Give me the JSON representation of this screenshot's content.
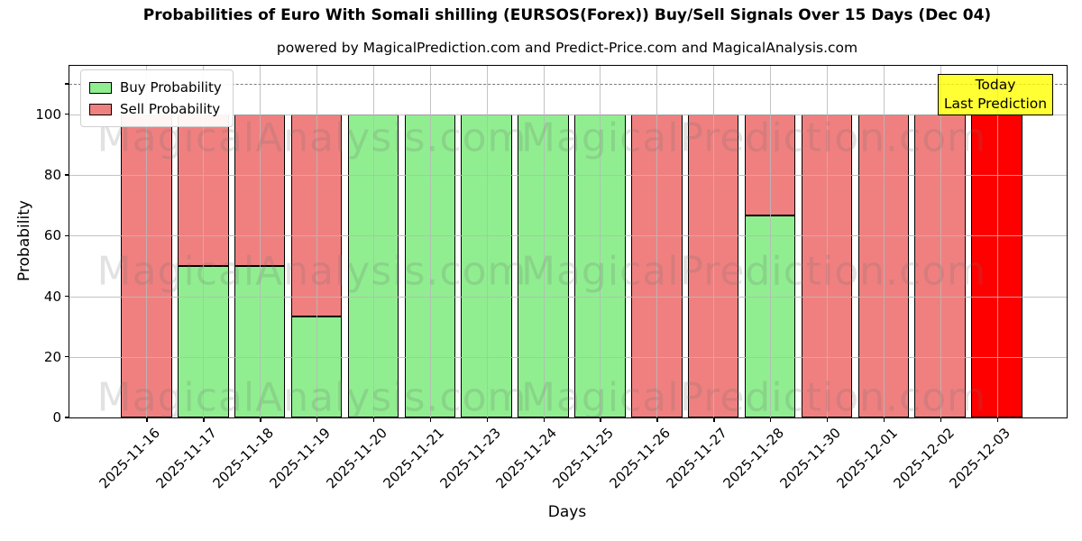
{
  "header": {
    "title": "Probabilities of Euro With Somali shilling (EURSOS(Forex)) Buy/Sell Signals Over 15 Days (Dec 04)",
    "subtitle": "powered by MagicalPrediction.com and Predict-Price.com and MagicalAnalysis.com"
  },
  "legend": {
    "items": [
      {
        "label": "Buy Probability",
        "color": "#90ee90"
      },
      {
        "label": "Sell Probability",
        "color": "#f08080"
      }
    ]
  },
  "annotation": {
    "line1": "Today",
    "line2": "Last Prediction",
    "bg_color": "rgba(255,255,0,0.8)"
  },
  "watermarks": {
    "left": "MagicalAnalysis.com",
    "right": "MagicalPrediction.com"
  },
  "chart_data": {
    "type": "bar",
    "stacked": true,
    "title": "Probabilities of Euro With Somali shilling (EURSOS(Forex)) Buy/Sell Signals Over 15 Days (Dec 04)",
    "xlabel": "Days",
    "ylabel": "Probability",
    "categories": [
      "2025-11-16",
      "2025-11-17",
      "2025-11-18",
      "2025-11-19",
      "2025-11-20",
      "2025-11-21",
      "2025-11-23",
      "2025-11-24",
      "2025-11-25",
      "2025-11-26",
      "2025-11-27",
      "2025-11-28",
      "2025-11-30",
      "2025-12-01",
      "2025-12-02",
      "2025-12-03"
    ],
    "series": [
      {
        "name": "Buy Probability",
        "color": "#90ee90",
        "values": [
          0,
          50,
          50,
          33.33,
          100,
          100,
          100,
          100,
          100,
          0,
          0,
          66.67,
          0,
          0,
          0,
          0
        ]
      },
      {
        "name": "Sell Probability",
        "color": "#f08080",
        "values": [
          100,
          50,
          50,
          66.67,
          0,
          0,
          0,
          0,
          0,
          100,
          100,
          33.33,
          100,
          100,
          100,
          100
        ]
      }
    ],
    "today_index": 15,
    "today_color": "#ff0000",
    "yticks": [
      0,
      20,
      40,
      60,
      80,
      100
    ],
    "ylim": [
      0,
      116
    ],
    "threshold_line": {
      "value": 110,
      "style": "dashed",
      "color": "#7a7a7a"
    },
    "grid": true,
    "legend_position": "upper left"
  }
}
